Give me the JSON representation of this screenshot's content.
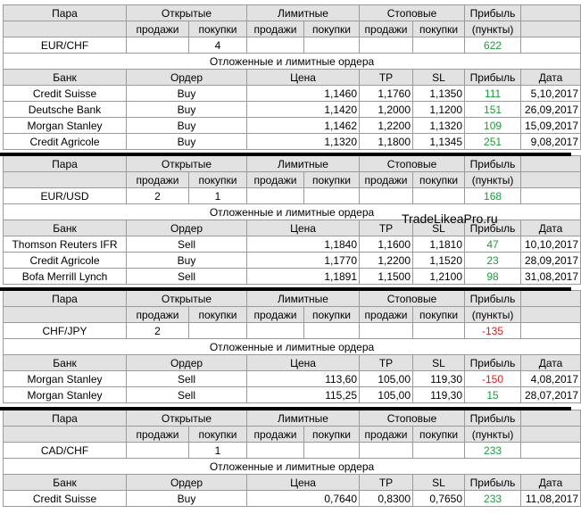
{
  "headers": {
    "pair": "Пара",
    "open": "Открытые",
    "limit": "Лимитные",
    "stop": "Стоповые",
    "profit": "Прибыль",
    "sells": "продажи",
    "buys": "покупки",
    "points": "(пункты)",
    "pending": "Отложенные и лимитные ордера",
    "bank": "Банк",
    "order": "Ордер",
    "price": "Цена",
    "tp": "TP",
    "sl": "SL",
    "date": "Дата"
  },
  "watermark": "TradeLikeaPro.ru",
  "colors": {
    "positive": "#1a9e3a",
    "negative": "#e01b1b",
    "header_bg": "#e2e2e2"
  },
  "blocks": [
    {
      "pair": "EUR/CHF",
      "open_sells": "",
      "open_buys": "4",
      "limit_sells": "",
      "limit_buys": "",
      "stop_sells": "",
      "stop_buys": "",
      "profit": "622",
      "profit_sign": "pos",
      "orders": [
        {
          "bank": "Credit Suisse",
          "order": "Buy",
          "price": "1,1460",
          "tp": "1,1760",
          "sl": "1,1350",
          "profit": "111",
          "sign": "pos",
          "date": "5,10,2017"
        },
        {
          "bank": "Deutsche Bank",
          "order": "Buy",
          "price": "1,1420",
          "tp": "1,2000",
          "sl": "1,1200",
          "profit": "151",
          "sign": "pos",
          "date": "26,09,2017"
        },
        {
          "bank": "Morgan Stanley",
          "order": "Buy",
          "price": "1,1462",
          "tp": "1,2200",
          "sl": "1,1320",
          "profit": "109",
          "sign": "pos",
          "date": "15,09,2017"
        },
        {
          "bank": "Credit Agricole",
          "order": "Buy",
          "price": "1,1320",
          "tp": "1,1800",
          "sl": "1,1345",
          "profit": "251",
          "sign": "pos",
          "date": "9,08,2017"
        }
      ]
    },
    {
      "pair": "EUR/USD",
      "open_sells": "2",
      "open_buys": "1",
      "limit_sells": "",
      "limit_buys": "",
      "stop_sells": "",
      "stop_buys": "",
      "profit": "168",
      "profit_sign": "pos",
      "orders": [
        {
          "bank": "Thomson Reuters IFR",
          "order": "Sell",
          "price": "1,1840",
          "tp": "1,1600",
          "sl": "1,1810",
          "profit": "47",
          "sign": "pos",
          "date": "10,10,2017"
        },
        {
          "bank": "Credit Agricole",
          "order": "Buy",
          "price": "1,1770",
          "tp": "1,2200",
          "sl": "1,1520",
          "profit": "23",
          "sign": "pos",
          "date": "28,09,2017"
        },
        {
          "bank": "Bofa Merrill Lynch",
          "order": "Sell",
          "price": "1,1891",
          "tp": "1,1500",
          "sl": "1,2100",
          "profit": "98",
          "sign": "pos",
          "date": "31,08,2017"
        }
      ]
    },
    {
      "pair": "CHF/JPY",
      "open_sells": "2",
      "open_buys": "",
      "limit_sells": "",
      "limit_buys": "",
      "stop_sells": "",
      "stop_buys": "",
      "profit": "-135",
      "profit_sign": "neg",
      "orders": [
        {
          "bank": "Morgan Stanley",
          "order": "Sell",
          "price": "113,60",
          "tp": "105,00",
          "sl": "119,30",
          "profit": "-150",
          "sign": "neg",
          "date": "4,08,2017"
        },
        {
          "bank": "Morgan Stanley",
          "order": "Sell",
          "price": "115,25",
          "tp": "105,00",
          "sl": "119,30",
          "profit": "15",
          "sign": "pos",
          "date": "28,07,2017"
        }
      ]
    },
    {
      "pair": "CAD/CHF",
      "open_sells": "",
      "open_buys": "1",
      "limit_sells": "",
      "limit_buys": "",
      "stop_sells": "",
      "stop_buys": "",
      "profit": "233",
      "profit_sign": "pos",
      "orders": [
        {
          "bank": "Credit Suisse",
          "order": "Buy",
          "price": "0,7640",
          "tp": "0,8300",
          "sl": "0,7650",
          "profit": "233",
          "sign": "pos",
          "date": "11,08,2017"
        }
      ]
    }
  ]
}
